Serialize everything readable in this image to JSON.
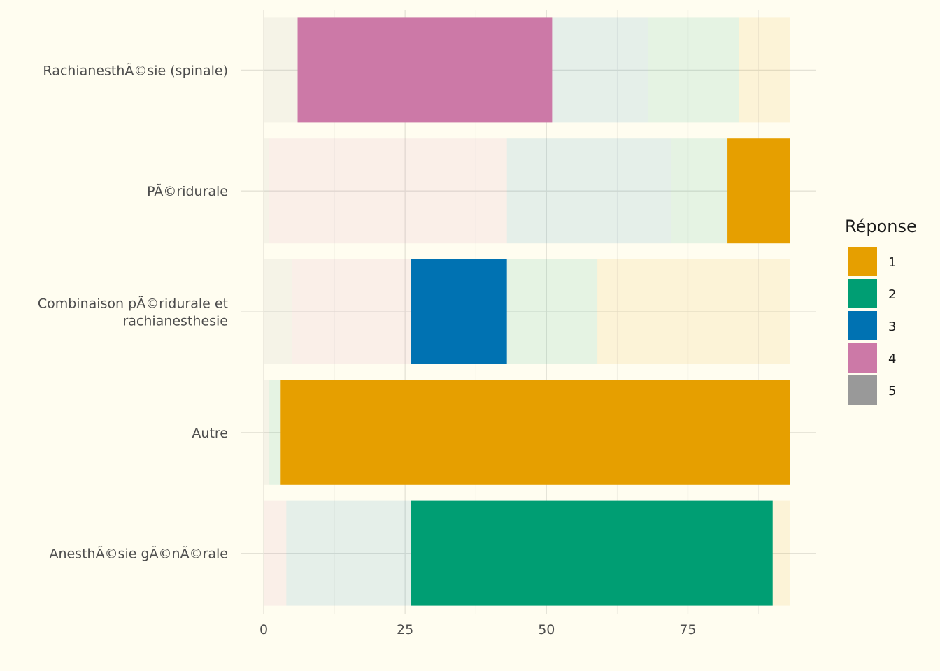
{
  "chart_data": {
    "type": "bar",
    "orientation": "horizontal",
    "stacked": true,
    "title": "",
    "xlabel": "",
    "ylabel": "",
    "xlim": [
      0,
      93
    ],
    "x_ticks": [
      0,
      25,
      50,
      75
    ],
    "grid": true,
    "legend": {
      "title": "Réponse",
      "placement": "right"
    },
    "categories": [
      "RachianesthÃ©sie (spinale)",
      "PÃ©ridurale",
      "Combinaison pÃ©ridurale et rachianesthesie",
      "Autre",
      "AnesthÃ©sie gÃ©nÃ©rale"
    ],
    "series": [
      {
        "name": "5",
        "color": "#999999",
        "values": [
          6,
          1,
          5,
          1,
          0
        ]
      },
      {
        "name": "4",
        "color": "#CC79A7",
        "values": [
          45,
          42,
          21,
          0,
          4
        ]
      },
      {
        "name": "3",
        "color": "#0072B2",
        "values": [
          17,
          29,
          17,
          0,
          22
        ]
      },
      {
        "name": "2",
        "color": "#009E73",
        "values": [
          16,
          10,
          16,
          2,
          64
        ]
      },
      {
        "name": "1",
        "color": "#E69F00",
        "values": [
          9,
          11,
          34,
          90,
          3
        ]
      }
    ],
    "highlighted": [
      "4",
      "1",
      "3",
      "1",
      "2"
    ],
    "faded_alpha": 0.1
  }
}
